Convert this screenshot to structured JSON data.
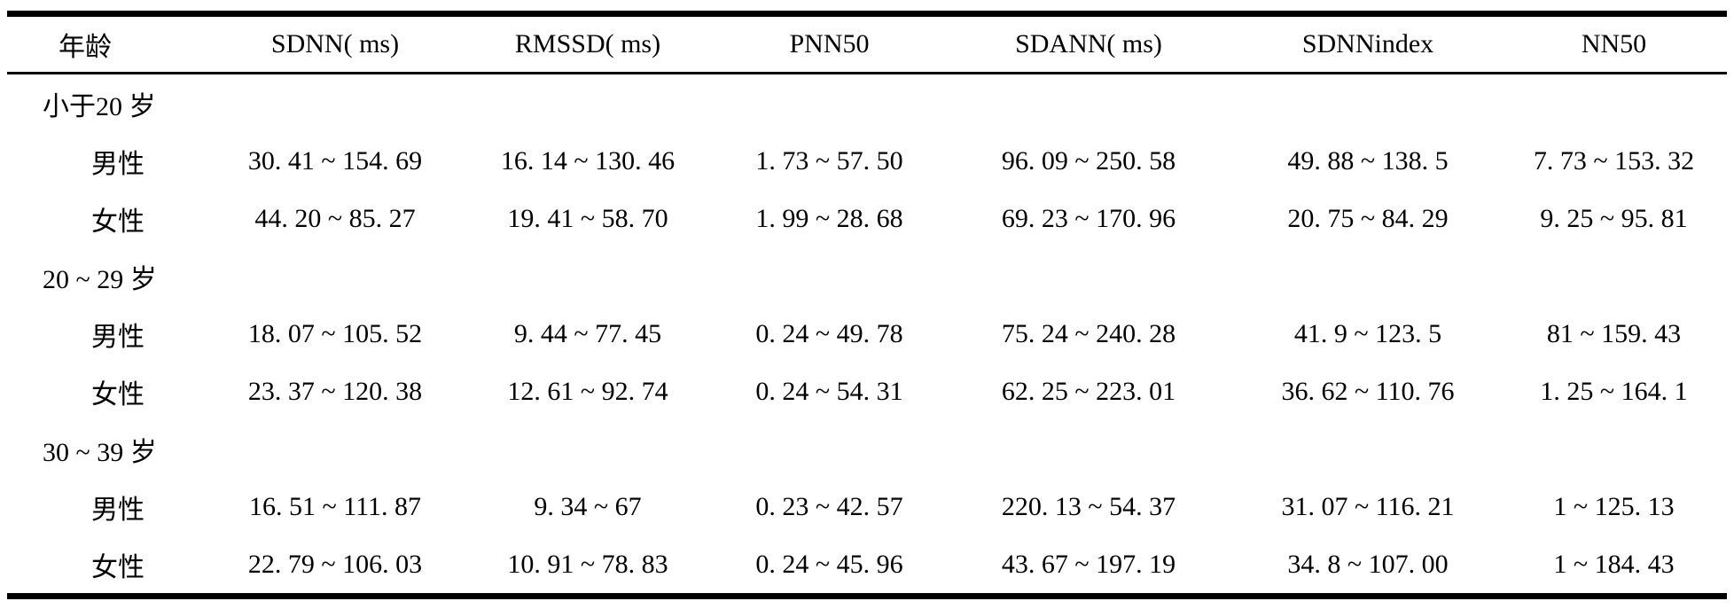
{
  "table": {
    "columns": [
      "年龄",
      "SDNN( ms)",
      "RMSSD( ms)",
      "PNN50",
      "SDANN( ms)",
      "SDNNindex",
      "NN50"
    ],
    "groups": [
      {
        "label": "小于20 岁",
        "rows": [
          {
            "label": "男性",
            "values": [
              "30. 41 ~ 154. 69",
              "16. 14 ~ 130. 46",
              "1. 73 ~ 57. 50",
              "96. 09 ~ 250. 58",
              "49. 88 ~ 138. 5",
              "7. 73 ~ 153. 32"
            ]
          },
          {
            "label": "女性",
            "values": [
              "44. 20 ~ 85. 27",
              "19. 41 ~ 58. 70",
              "1. 99 ~ 28. 68",
              "69. 23 ~ 170. 96",
              "20. 75 ~ 84. 29",
              "9. 25 ~ 95. 81"
            ]
          }
        ]
      },
      {
        "label": "20 ~ 29 岁",
        "rows": [
          {
            "label": "男性",
            "values": [
              "18. 07 ~ 105. 52",
              "9. 44 ~ 77. 45",
              "0. 24 ~ 49. 78",
              "75. 24 ~ 240. 28",
              "41. 9 ~ 123. 5",
              "81 ~ 159. 43"
            ]
          },
          {
            "label": "女性",
            "values": [
              "23. 37 ~ 120. 38",
              "12. 61 ~ 92. 74",
              "0. 24 ~ 54. 31",
              "62. 25 ~ 223. 01",
              "36. 62 ~ 110. 76",
              "1. 25 ~ 164. 1"
            ]
          }
        ]
      },
      {
        "label": "30 ~ 39 岁",
        "rows": [
          {
            "label": "男性",
            "values": [
              "16. 51 ~ 111. 87",
              "9. 34 ~ 67",
              "0. 23 ~ 42. 57",
              "220. 13 ~ 54. 37",
              "31. 07 ~ 116. 21",
              "1 ~ 125. 13"
            ]
          },
          {
            "label": "女性",
            "values": [
              "22. 79 ~ 106. 03",
              "10. 91 ~ 78. 83",
              "0. 24 ~ 45. 96",
              "43. 67 ~ 197. 19",
              "34. 8 ~ 107. 00",
              "1 ~ 184. 43"
            ]
          }
        ]
      }
    ]
  },
  "colors": {
    "text": "#000000",
    "border": "#000000",
    "background": "#ffffff"
  }
}
